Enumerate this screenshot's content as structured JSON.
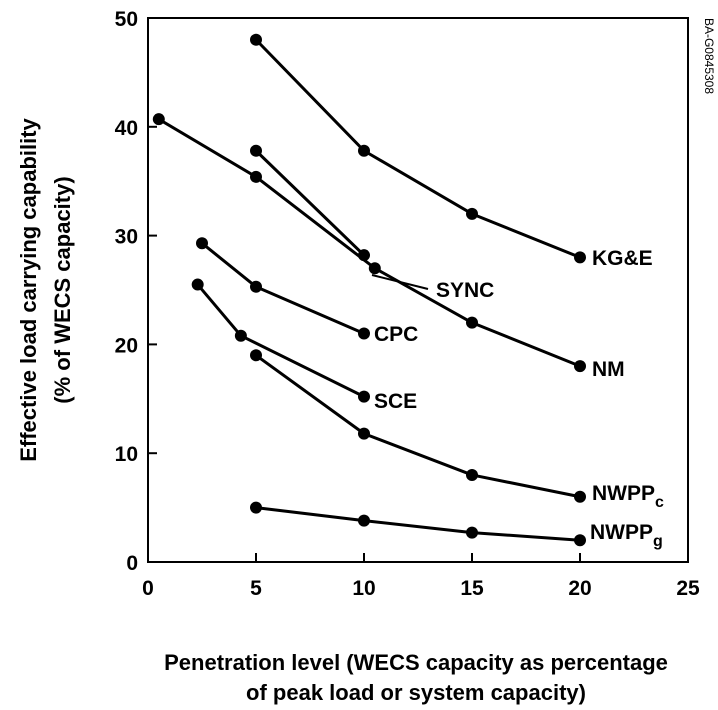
{
  "chart_data": {
    "type": "line",
    "xlabel": [
      "Penetration level (WECS capacity as percentage",
      "of peak load or system capacity)"
    ],
    "ylabel": [
      "Effective load carrying capability",
      "(% of WECS capacity)"
    ],
    "xlim": [
      0,
      25
    ],
    "ylim": [
      0,
      50
    ],
    "xticks": [
      0,
      5,
      10,
      15,
      20,
      25
    ],
    "yticks": [
      0,
      10,
      20,
      30,
      40,
      50
    ],
    "grid": false,
    "series": [
      {
        "name": "KG&E",
        "label_main": "KG&E",
        "label_sub": "",
        "x": [
          5,
          10,
          15,
          20
        ],
        "y": [
          48,
          37.8,
          32,
          28
        ]
      },
      {
        "name": "NM",
        "label_main": "NM",
        "label_sub": "",
        "x": [
          0.5,
          5,
          10.5,
          15,
          20
        ],
        "y": [
          40.7,
          35.4,
          27,
          22,
          18
        ]
      },
      {
        "name": "SYNC",
        "label_main": "SYNC",
        "label_sub": "",
        "x": [
          5,
          10
        ],
        "y": [
          37.8,
          28.2
        ]
      },
      {
        "name": "CPC",
        "label_main": "CPC",
        "label_sub": "",
        "x": [
          2.5,
          5,
          10
        ],
        "y": [
          29.3,
          25.3,
          21
        ]
      },
      {
        "name": "SCE",
        "label_main": "SCE",
        "label_sub": "",
        "x": [
          2.3,
          4.3,
          10
        ],
        "y": [
          25.5,
          20.8,
          15.2
        ]
      },
      {
        "name": "NWPPc",
        "label_main": "NWPP",
        "label_sub": "c",
        "x": [
          5,
          10,
          15,
          20
        ],
        "y": [
          19,
          11.8,
          8,
          6
        ]
      },
      {
        "name": "NWPPg",
        "label_main": "NWPP",
        "label_sub": "g",
        "x": [
          5,
          10,
          15,
          20
        ],
        "y": [
          5,
          3.8,
          2.7,
          2
        ]
      }
    ],
    "side_code": "BA-G0845308"
  }
}
